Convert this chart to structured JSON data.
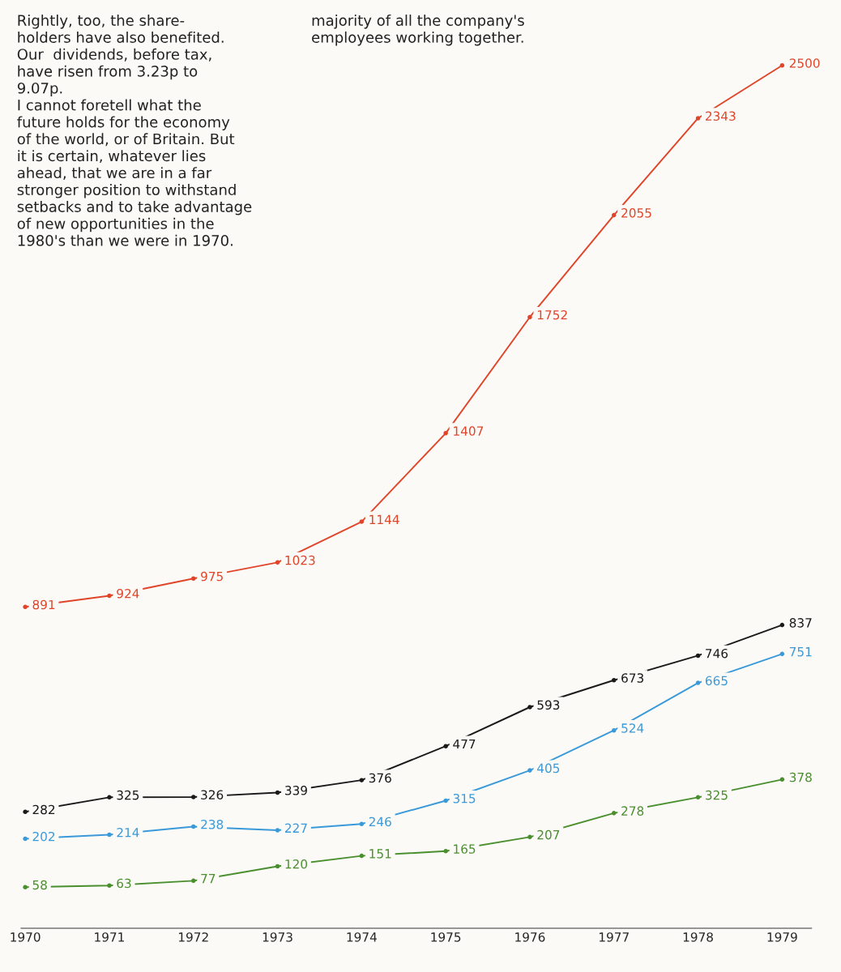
{
  "chart_data": {
    "type": "line",
    "x": [
      1970,
      1971,
      1972,
      1973,
      1974,
      1975,
      1976,
      1977,
      1978,
      1979
    ],
    "xlim": [
      1969.95,
      1979.35
    ],
    "xticks": [
      1970,
      1971,
      1972,
      1973,
      1974,
      1975,
      1976,
      1977,
      1978,
      1979
    ],
    "tick_labels": "x",
    "series": [
      {
        "color": "#e0452a",
        "values": [
          891,
          924,
          975,
          1023,
          1144,
          1407,
          1752,
          2055,
          2343,
          2500
        ]
      },
      {
        "color": "#1a1a1a",
        "values": [
          282,
          325,
          326,
          339,
          376,
          477,
          593,
          673,
          746,
          837
        ]
      },
      {
        "color": "#3a9ad9",
        "values": [
          202,
          214,
          238,
          227,
          246,
          315,
          405,
          524,
          665,
          751
        ]
      },
      {
        "color": "#4a8f2e",
        "values": [
          58,
          63,
          77,
          120,
          151,
          165,
          207,
          278,
          325,
          378
        ]
      }
    ],
    "data_labels": true,
    "marker": "circle",
    "grid": false,
    "legend": false,
    "annotations": [
      "Rightly, too, the share-\nholders have also benefited.\nOur  dividends, before tax,\nhave risen from 3.23p to\n9.07p.\nI cannot foretell what the\nfuture holds for the economy\nof the world, or of Britain. But\nit is certain, whatever lies\nahead, that we are in a far\nstronger position to withstand\nsetbacks and to take advantage\nof new opportunities in the\n1980's than we were in 1970.",
      "majority of all the company's\nemployees working together."
    ]
  }
}
